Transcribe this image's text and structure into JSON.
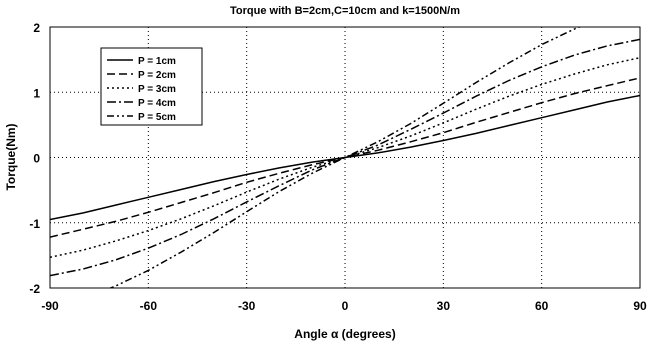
{
  "chart_data": {
    "type": "line",
    "title": "Torque with B=2cm,C=10cm and k=1500N/m",
    "xlabel": "Angle α (degrees)",
    "ylabel": "Torque(Nm)",
    "xlim": [
      -90,
      90
    ],
    "ylim": [
      -2,
      2
    ],
    "x_ticks": [
      "-90",
      "-60",
      "-30",
      "0",
      "30",
      "60",
      "90"
    ],
    "y_ticks": [
      "2",
      "1",
      "0",
      "-1",
      "-2"
    ],
    "x_tick_values": [
      -90,
      -60,
      -30,
      0,
      30,
      60,
      90
    ],
    "y_tick_values": [
      2,
      1,
      0,
      -1,
      -2
    ],
    "grid": "dotted",
    "legend_position": "top-left",
    "x": [
      -90,
      -80,
      -70,
      -60,
      -50,
      -40,
      -30,
      -20,
      -10,
      0,
      10,
      20,
      30,
      40,
      50,
      60,
      70,
      80,
      90
    ],
    "series": [
      {
        "name": "P = 1cm",
        "dash": "solid",
        "values": [
          -0.95,
          -0.85,
          -0.73,
          -0.61,
          -0.49,
          -0.37,
          -0.26,
          -0.16,
          -0.07,
          0,
          0.07,
          0.16,
          0.26,
          0.37,
          0.49,
          0.61,
          0.73,
          0.85,
          0.95
        ]
      },
      {
        "name": "P = 2cm",
        "dash": "dashed",
        "values": [
          -1.22,
          -1.1,
          -0.98,
          -0.84,
          -0.69,
          -0.54,
          -0.38,
          -0.24,
          -0.11,
          0,
          0.11,
          0.24,
          0.38,
          0.54,
          0.69,
          0.84,
          0.98,
          1.1,
          1.22
        ]
      },
      {
        "name": "P = 3cm",
        "dash": "dotted",
        "values": [
          -1.53,
          -1.42,
          -1.28,
          -1.12,
          -0.94,
          -0.74,
          -0.53,
          -0.33,
          -0.15,
          0,
          0.15,
          0.33,
          0.53,
          0.74,
          0.94,
          1.12,
          1.28,
          1.42,
          1.53
        ]
      },
      {
        "name": "P = 4cm",
        "dash": "dashdot",
        "values": [
          -1.81,
          -1.71,
          -1.57,
          -1.39,
          -1.18,
          -0.94,
          -0.68,
          -0.43,
          -0.19,
          0,
          0.19,
          0.43,
          0.68,
          0.94,
          1.18,
          1.39,
          1.57,
          1.71,
          1.81
        ]
      },
      {
        "name": "P = 5cm",
        "dash": "dashdotdot",
        "values": [
          -2.3,
          -2.17,
          -1.97,
          -1.73,
          -1.45,
          -1.15,
          -0.83,
          -0.52,
          -0.24,
          0,
          0.24,
          0.52,
          0.83,
          1.15,
          1.45,
          1.73,
          1.97,
          2.17,
          2.3
        ]
      }
    ]
  }
}
